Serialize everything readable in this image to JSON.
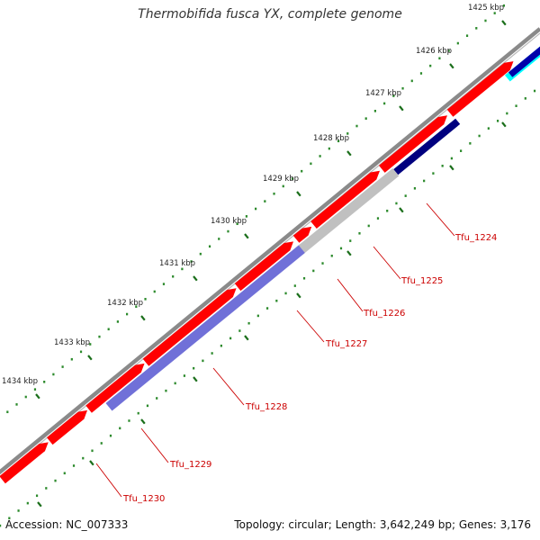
{
  "title": "Thermobifida fusca YX, complete genome",
  "footer": {
    "accession": "Accession: NC_007333",
    "summary": "Topology: circular; Length: 3,642,249 bp; Genes: 3,176"
  },
  "colors": {
    "backbone": "#8a8a8a",
    "gene": "#ff0000",
    "tick_major": "#1a6e1a",
    "tick_minor": "#2c8a2c",
    "gene_label": "#cc0000"
  },
  "ticks": [
    {
      "label": "1425 kbp"
    },
    {
      "label": "1426 kbp"
    },
    {
      "label": "1427 kbp"
    },
    {
      "label": "1428 kbp"
    },
    {
      "label": "1429 kbp"
    },
    {
      "label": "1430 kbp"
    },
    {
      "label": "1431 kbp"
    },
    {
      "label": "1432 kbp"
    },
    {
      "label": "1433 kbp"
    },
    {
      "label": "1434 kbp"
    }
  ],
  "features": [
    {
      "name": "Tfu_1224",
      "color": "#00ffff"
    },
    {
      "name": "Tfu_1225",
      "color": "#00007f"
    },
    {
      "name": "Tfu_1226",
      "color": "#7f7f7f"
    },
    {
      "name": "Tfu_1227",
      "color": "#c0c0c0"
    },
    {
      "name": "Tfu_1228",
      "color": "#7070d8"
    },
    {
      "name": "Tfu_1229",
      "color": "#7070d8"
    },
    {
      "name": "Tfu_1230",
      "color": "#ff0000"
    }
  ]
}
